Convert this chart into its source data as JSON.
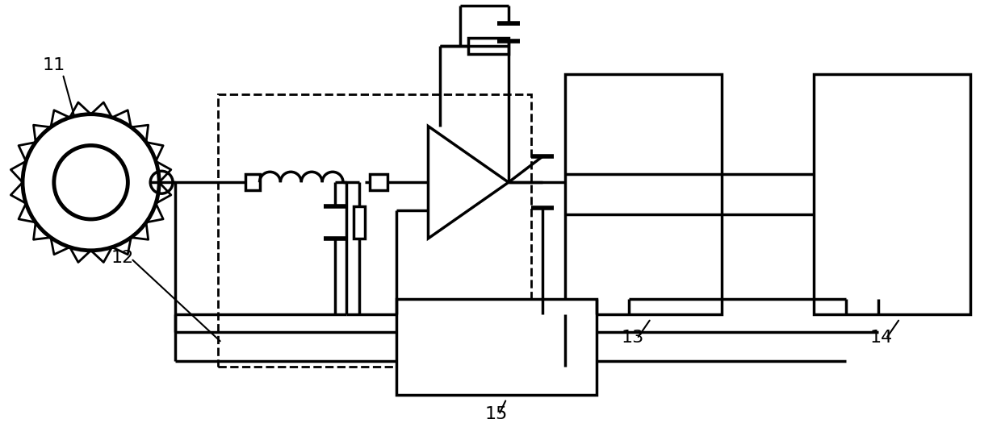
{
  "fig_width": 12.4,
  "fig_height": 5.46,
  "dpi": 100,
  "bg_color": "#ffffff",
  "line_color": "#000000",
  "line_width": 2.5,
  "label_fontsize": 16
}
